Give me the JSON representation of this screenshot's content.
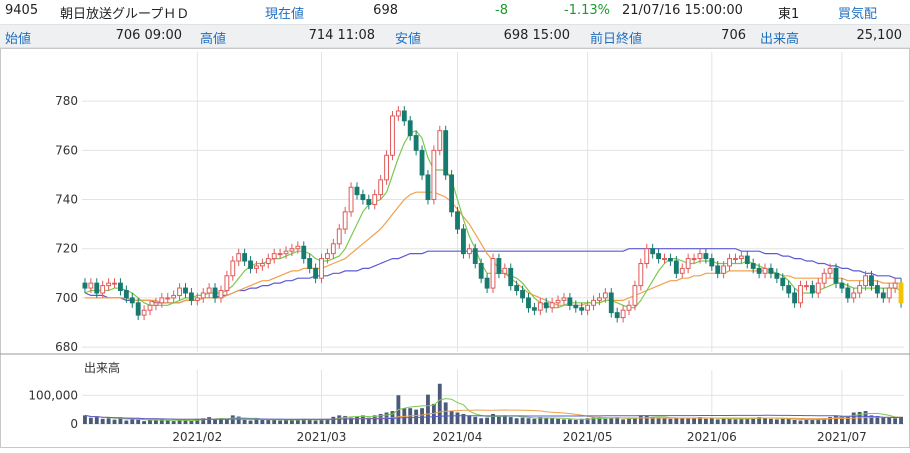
{
  "header": {
    "code": "9405",
    "name": "朝日放送グループＨＤ",
    "current_label": "現在値",
    "current_value": "698",
    "change": "-8",
    "change_pct": "-1.13%",
    "datetime": "21/07/16  15:00:00",
    "market": "東1",
    "quote_label": "買気配",
    "open_label": "始値",
    "open_value": "706 09:00",
    "high_label": "高値",
    "high_value": "714 11:08",
    "low_label": "安値",
    "low_value": "698 15:00",
    "prev_close_label": "前日終値",
    "prev_close_value": "706",
    "volume_label": "出来高",
    "volume_value": "25,100"
  },
  "colors": {
    "up_candle": "#e05a5a",
    "down_candle": "#177a6e",
    "ma_short": "#7bc94f",
    "ma_mid": "#f0a04b",
    "ma_long": "#5b5bd6",
    "volume_bar": "#4a5a78",
    "latest_bar": "#f5c400"
  },
  "chart_data": [
    {
      "type": "candlestick",
      "yticks": [
        680,
        700,
        720,
        740,
        760,
        780
      ],
      "ylim": [
        678,
        800
      ],
      "xticks": [
        "2021/02",
        "2021/03",
        "2021/04",
        "2021/05",
        "2021/06",
        "2021/07"
      ],
      "grid": true,
      "series_close": [
        704,
        706,
        702,
        705,
        706,
        706,
        703,
        700,
        698,
        693,
        695,
        697,
        698,
        700,
        700,
        701,
        704,
        702,
        699,
        700,
        702,
        704,
        700,
        703,
        709,
        715,
        718,
        715,
        712,
        713,
        714,
        716,
        718,
        718,
        719,
        720,
        721,
        716,
        712,
        708,
        716,
        718,
        722,
        728,
        735,
        745,
        742,
        740,
        738,
        742,
        748,
        758,
        774,
        776,
        772,
        766,
        760,
        750,
        740,
        760,
        768,
        750,
        735,
        728,
        718,
        720,
        714,
        708,
        704,
        716,
        710,
        712,
        705,
        703,
        700,
        696,
        695,
        698,
        696,
        698,
        699,
        700,
        697,
        696,
        695,
        697,
        699,
        700,
        702,
        694,
        692,
        695,
        697,
        705,
        714,
        720,
        718,
        716,
        716,
        715,
        710,
        712,
        716,
        716,
        718,
        716,
        713,
        710,
        713,
        716,
        716,
        717,
        714,
        712,
        710,
        712,
        710,
        708,
        705,
        702,
        698,
        705,
        705,
        702,
        706,
        710,
        712,
        706,
        704,
        700,
        702,
        705,
        709,
        705,
        702,
        700,
        704,
        706,
        698
      ],
      "ma_short": [
        702,
        703,
        703,
        703,
        703,
        704,
        704,
        703,
        702,
        700,
        698,
        697,
        697,
        697,
        697,
        698,
        699,
        700,
        700,
        701,
        701,
        702,
        702,
        702,
        703,
        705,
        708,
        711,
        713,
        714,
        714,
        715,
        716,
        716,
        717,
        718,
        719,
        719,
        718,
        716,
        715,
        715,
        716,
        717,
        720,
        725,
        730,
        735,
        738,
        739,
        740,
        743,
        750,
        757,
        763,
        767,
        768,
        765,
        757,
        752,
        752,
        752,
        748,
        740,
        732,
        725,
        720,
        714,
        710,
        710,
        710,
        710,
        709,
        708,
        706,
        703,
        700,
        698,
        697,
        696,
        696,
        697,
        698,
        698,
        698,
        698,
        698,
        698,
        699,
        699,
        698,
        697,
        696,
        696,
        699,
        703,
        707,
        711,
        714,
        716,
        716,
        715,
        714,
        714,
        715,
        715,
        715,
        714,
        714,
        714,
        714,
        714,
        715,
        714,
        713,
        712,
        711,
        710,
        709,
        707,
        704,
        702,
        702,
        702,
        703,
        704,
        705,
        706,
        706,
        705,
        704,
        704,
        704,
        704,
        704,
        704,
        704,
        704,
        703
      ],
      "ma_mid": [
        700,
        700,
        700,
        700,
        700,
        700,
        700,
        700,
        699,
        699,
        699,
        699,
        699,
        698,
        698,
        698,
        698,
        699,
        699,
        699,
        700,
        700,
        700,
        700,
        701,
        702,
        703,
        704,
        705,
        706,
        707,
        707,
        708,
        709,
        710,
        711,
        711,
        712,
        712,
        712,
        712,
        713,
        714,
        715,
        716,
        718,
        720,
        722,
        724,
        726,
        728,
        731,
        734,
        737,
        740,
        742,
        743,
        743,
        743,
        743,
        742,
        741,
        739,
        736,
        733,
        730,
        726,
        722,
        718,
        715,
        712,
        710,
        708,
        706,
        704,
        702,
        701,
        700,
        699,
        698,
        697,
        697,
        697,
        697,
        697,
        698,
        698,
        698,
        699,
        699,
        699,
        699,
        700,
        701,
        702,
        703,
        704,
        705,
        706,
        707,
        707,
        708,
        708,
        709,
        709,
        710,
        710,
        710,
        710,
        711,
        711,
        711,
        711,
        711,
        711,
        711,
        710,
        710,
        709,
        709,
        708,
        708,
        708,
        708,
        708,
        708,
        708,
        708,
        708,
        707,
        707,
        707,
        707,
        707,
        707,
        706,
        706,
        706,
        706
      ],
      "ma_long": [
        702,
        701,
        701,
        701,
        700,
        700,
        700,
        699,
        699,
        699,
        699,
        699,
        698,
        698,
        698,
        698,
        698,
        699,
        699,
        699,
        700,
        700,
        700,
        701,
        701,
        702,
        703,
        703,
        704,
        704,
        705,
        705,
        706,
        706,
        707,
        707,
        708,
        708,
        708,
        709,
        709,
        709,
        710,
        710,
        711,
        711,
        711,
        712,
        712,
        713,
        714,
        715,
        716,
        716,
        717,
        718,
        718,
        718,
        719,
        719,
        719,
        719,
        719,
        719,
        719,
        719,
        719,
        719,
        719,
        719,
        719,
        719,
        719,
        719,
        719,
        719,
        719,
        719,
        719,
        719,
        719,
        719,
        719,
        719,
        719,
        719,
        719,
        719,
        719,
        719,
        719,
        719,
        720,
        720,
        720,
        720,
        720,
        720,
        720,
        720,
        720,
        720,
        720,
        720,
        720,
        720,
        720,
        720,
        720,
        720,
        720,
        719,
        719,
        719,
        719,
        718,
        718,
        718,
        717,
        717,
        716,
        716,
        715,
        715,
        714,
        714,
        713,
        713,
        712,
        712,
        711,
        711,
        710,
        710,
        709,
        709,
        709,
        708,
        708
      ]
    },
    {
      "type": "bar",
      "title": "出来高",
      "yticks": [
        0,
        100000
      ],
      "ytick_labels": [
        "0",
        "100,000"
      ],
      "ylim": [
        0,
        160000
      ],
      "values": [
        30000,
        22000,
        25000,
        18000,
        20000,
        15000,
        22000,
        12000,
        18000,
        15000,
        10000,
        14000,
        12000,
        16000,
        12000,
        10000,
        14000,
        12000,
        11000,
        18000,
        20000,
        24000,
        15000,
        18000,
        16000,
        30000,
        26000,
        14000,
        12000,
        18000,
        15000,
        14000,
        16000,
        12000,
        14000,
        14000,
        16000,
        18000,
        14000,
        12000,
        14000,
        18000,
        25000,
        30000,
        28000,
        22000,
        26000,
        30000,
        22000,
        30000,
        35000,
        40000,
        45000,
        100000,
        55000,
        55000,
        50000,
        55000,
        102000,
        70000,
        140000,
        75000,
        45000,
        40000,
        35000,
        30000,
        25000,
        20000,
        22000,
        35000,
        28000,
        30000,
        24000,
        20000,
        22000,
        20000,
        18000,
        24000,
        22000,
        20000,
        18000,
        16000,
        16000,
        14000,
        18000,
        20000,
        22000,
        24000,
        18000,
        20000,
        24000,
        16000,
        18000,
        20000,
        30000,
        28000,
        24000,
        22000,
        20000,
        18000,
        22000,
        22000,
        20000,
        22000,
        24000,
        18000,
        20000,
        16000,
        18000,
        20000,
        16000,
        18000,
        20000,
        22000,
        24000,
        20000,
        18000,
        16000,
        18000,
        20000,
        14000,
        12000,
        14000,
        16000,
        18000,
        20000,
        24000,
        30000,
        28000,
        26000,
        40000,
        42000,
        45000,
        30000,
        28000,
        24000,
        22000,
        20000,
        25100
      ]
    }
  ]
}
